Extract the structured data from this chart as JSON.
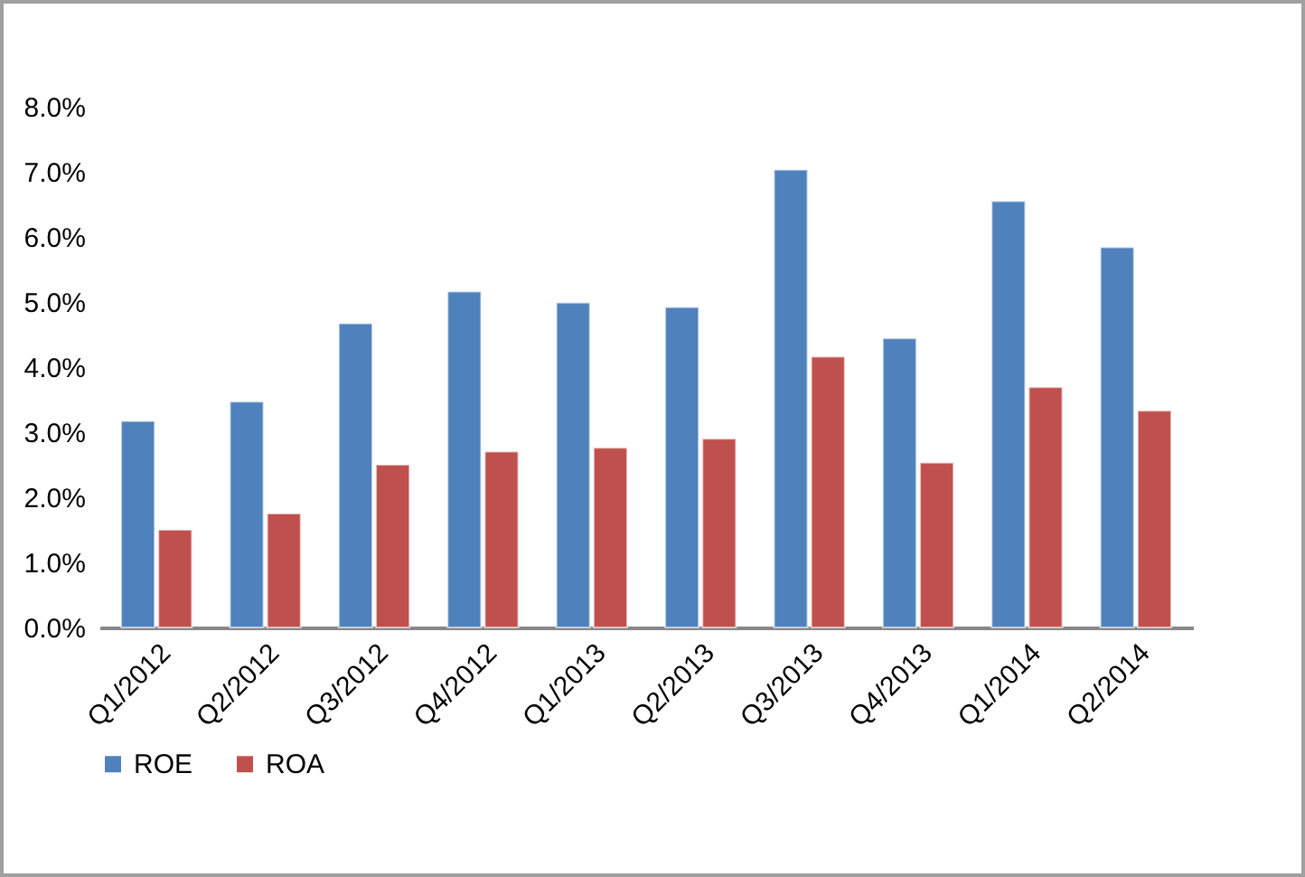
{
  "chart_data": {
    "type": "bar",
    "categories": [
      "Q1/2012",
      "Q2/2012",
      "Q3/2012",
      "Q4/2012",
      "Q1/2013",
      "Q2/2013",
      "Q3/2013",
      "Q4/2013",
      "Q1/2014",
      "Q2/2014"
    ],
    "series": [
      {
        "name": "ROE",
        "color": "#4f81bd",
        "values": [
          3.17,
          3.47,
          4.67,
          5.16,
          4.99,
          4.92,
          7.03,
          4.44,
          6.55,
          5.84
        ]
      },
      {
        "name": "ROA",
        "color": "#c0504d",
        "values": [
          1.5,
          1.75,
          2.5,
          2.7,
          2.76,
          2.9,
          4.16,
          2.53,
          3.69,
          3.33
        ]
      }
    ],
    "ylim": [
      0,
      8
    ],
    "yticks": [
      {
        "value": 0,
        "label": "0.0%"
      },
      {
        "value": 1,
        "label": "1.0%"
      },
      {
        "value": 2,
        "label": "2.0%"
      },
      {
        "value": 3,
        "label": "3.0%"
      },
      {
        "value": 4,
        "label": "4.0%"
      },
      {
        "value": 5,
        "label": "5.0%"
      },
      {
        "value": 6,
        "label": "6.0%"
      },
      {
        "value": 7,
        "label": "7.0%"
      },
      {
        "value": 8,
        "label": "8.0%"
      }
    ],
    "grid": false,
    "legend": "bottom"
  }
}
